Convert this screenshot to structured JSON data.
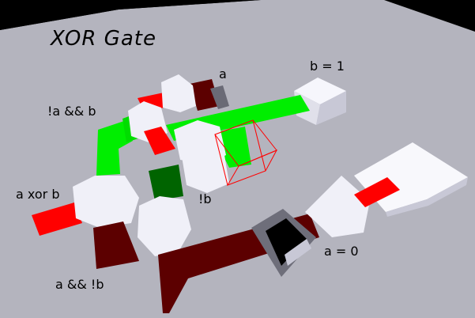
{
  "title": "XOR Gate",
  "labels": {
    "a": "a",
    "b_eq": "b = 1",
    "not_a_and_b": "!a && b",
    "a_xor_b": "a xor b",
    "not_b": "!b",
    "a_eq": "a = 0",
    "a_and_not_b": "a && !b"
  },
  "inputs": {
    "a": 0,
    "b": 1
  },
  "colors": {
    "floor": "#b3b3bd",
    "wire_on": "#00ee00",
    "wire_off_dark": "#5c0000",
    "signal_red": "#ff0000",
    "block_white": "#f0f0f8",
    "selection": "#ff0000",
    "dark_green": "#006400"
  }
}
